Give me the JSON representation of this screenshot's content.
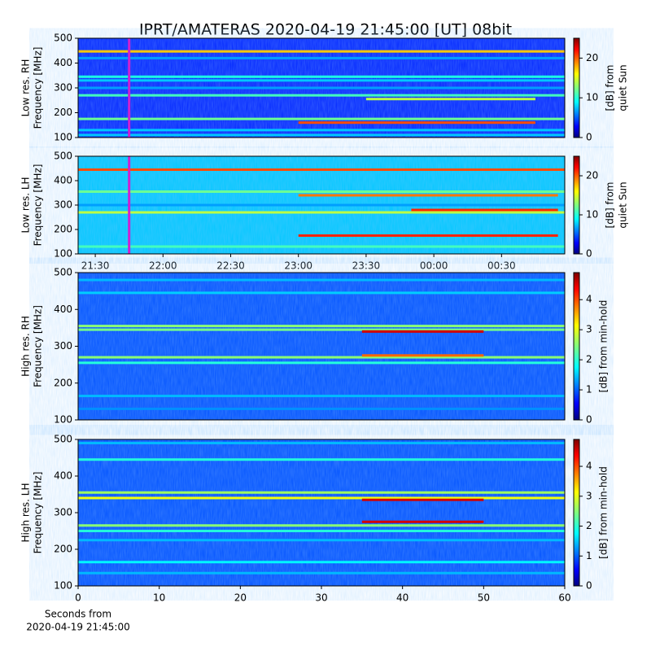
{
  "chart_data": [
    {
      "type": "spectrogram",
      "title": "IPRT/AMATERAS 2020-04-19 21:45:00 [UT]   08bit",
      "ylabel": [
        "Low res. RH",
        "Frequency [MHz]"
      ],
      "ylim": [
        100,
        500
      ],
      "yticks": [
        100,
        200,
        300,
        400,
        500
      ],
      "xlim": [
        22.4,
        238
      ],
      "clim": [
        0,
        25
      ],
      "cticks": [
        0,
        10,
        20
      ],
      "colorbar_label": [
        "[dB] from",
        "quiet Sun"
      ],
      "background": 4,
      "marker": {
        "x": 45,
        "color": "#d020d0"
      },
      "bands": [
        {
          "freq": 447,
          "value": 17
        },
        {
          "freq": 420,
          "value": 7
        },
        {
          "freq": 345,
          "value": 10
        },
        {
          "freq": 330,
          "value": 8
        },
        {
          "freq": 300,
          "value": 7
        },
        {
          "freq": 270,
          "value": 11
        },
        {
          "freq": 255,
          "value": 14,
          "x0": 150,
          "x1": 225
        },
        {
          "freq": 175,
          "value": 12
        },
        {
          "freq": 160,
          "value": 20,
          "x0": 120,
          "x1": 225
        },
        {
          "freq": 130,
          "value": 8
        },
        {
          "freq": 110,
          "value": 8
        }
      ]
    },
    {
      "type": "spectrogram",
      "ylabel": [
        "Low res. LH",
        "Frequency [MHz]"
      ],
      "ylim": [
        100,
        500
      ],
      "yticks": [
        100,
        200,
        300,
        400,
        500
      ],
      "xlim": [
        22.4,
        238
      ],
      "xticks": [
        {
          "value": 30,
          "label": "21:30"
        },
        {
          "value": 60,
          "label": "22:00"
        },
        {
          "value": 90,
          "label": "22:30"
        },
        {
          "value": 120,
          "label": "23:00"
        },
        {
          "value": 150,
          "label": "23:30"
        },
        {
          "value": 180,
          "label": "00:00"
        },
        {
          "value": 210,
          "label": "00:30"
        }
      ],
      "clim": [
        0,
        25
      ],
      "cticks": [
        0,
        10,
        20
      ],
      "colorbar_label": [
        "[dB] from",
        "quiet Sun"
      ],
      "background": 8,
      "marker": {
        "x": 45,
        "color": "#d020d0"
      },
      "bands": [
        {
          "freq": 445,
          "value": 20
        },
        {
          "freq": 355,
          "value": 12
        },
        {
          "freq": 340,
          "value": 19,
          "x0": 120,
          "x1": 235
        },
        {
          "freq": 300,
          "value": 7
        },
        {
          "freq": 270,
          "value": 14
        },
        {
          "freq": 280,
          "value": 21,
          "x0": 170,
          "x1": 235
        },
        {
          "freq": 175,
          "value": 21,
          "x0": 120,
          "x1": 235
        },
        {
          "freq": 130,
          "value": 11
        }
      ]
    },
    {
      "type": "spectrogram",
      "ylabel": [
        "High res. RH",
        "Frequency [MHz]"
      ],
      "ylim": [
        100,
        500
      ],
      "yticks": [
        100,
        200,
        300,
        400,
        500
      ],
      "xlim": [
        0,
        60
      ],
      "clim": [
        0,
        4.9
      ],
      "cticks": [
        0,
        1,
        2,
        3,
        4
      ],
      "colorbar_label": [
        "[dB] from min-hold"
      ],
      "background": 1,
      "bands": [
        {
          "freq": 480,
          "value": 1.5
        },
        {
          "freq": 445,
          "value": 1.6
        },
        {
          "freq": 355,
          "value": 2.5
        },
        {
          "freq": 345,
          "value": 2.4
        },
        {
          "freq": 340,
          "value": 4.5,
          "x0": 35,
          "x1": 50
        },
        {
          "freq": 270,
          "value": 2.5
        },
        {
          "freq": 275,
          "value": 3.8,
          "x0": 35,
          "x1": 50
        },
        {
          "freq": 255,
          "value": 2
        },
        {
          "freq": 165,
          "value": 1.5
        },
        {
          "freq": 130,
          "value": 1.3
        }
      ]
    },
    {
      "type": "spectrogram",
      "ylabel": [
        "High res. LH",
        "Frequency [MHz]"
      ],
      "ylim": [
        100,
        500
      ],
      "yticks": [
        100,
        200,
        300,
        400,
        500
      ],
      "xlim": [
        0,
        60
      ],
      "xticks": [
        0,
        10,
        20,
        30,
        40,
        50,
        60
      ],
      "xlabel": [
        "Seconds from",
        "2020-04-19 21:45:00"
      ],
      "clim": [
        0,
        4.9
      ],
      "cticks": [
        0,
        1,
        2,
        3,
        4
      ],
      "colorbar_label": [
        "[dB] from min-hold"
      ],
      "background": 1,
      "bands": [
        {
          "freq": 490,
          "value": 1.5
        },
        {
          "freq": 445,
          "value": 2
        },
        {
          "freq": 355,
          "value": 2.6
        },
        {
          "freq": 340,
          "value": 3
        },
        {
          "freq": 335,
          "value": 4.5,
          "x0": 35,
          "x1": 50
        },
        {
          "freq": 275,
          "value": 4.5,
          "x0": 35,
          "x1": 50
        },
        {
          "freq": 265,
          "value": 2.5
        },
        {
          "freq": 250,
          "value": 2
        },
        {
          "freq": 225,
          "value": 1.5
        },
        {
          "freq": 165,
          "value": 1.8
        },
        {
          "freq": 135,
          "value": 1.5
        }
      ]
    }
  ]
}
